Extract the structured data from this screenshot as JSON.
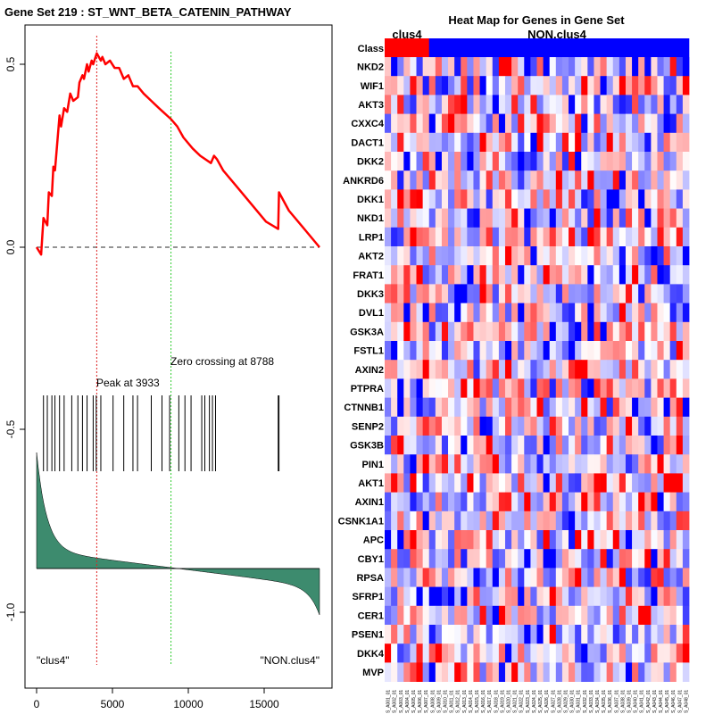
{
  "chart_data": [
    {
      "type": "line",
      "title": "Gene Set  219 : ST_WNT_BETA_CATENIN_PATHWAY",
      "xlim": [
        0,
        18500
      ],
      "ylim": [
        -1.15,
        0.6
      ],
      "x_ticks": [
        "0",
        "5000",
        "10000",
        "15000"
      ],
      "y_ticks": [
        "0.5",
        "0.0",
        "-0.5",
        "-1.0"
      ],
      "peak_label": "Peak at 3933",
      "peak_x": 3933,
      "zero_crossing_label": "Zero crossing at 8788",
      "zero_crossing_x": 8788,
      "left_class_label": "\"clus4\"",
      "right_class_label": "\"NON.clus4\"",
      "series": [
        {
          "name": "running enrichment score",
          "color": "#ff0000",
          "x": [
            0,
            300,
            450,
            700,
            800,
            1000,
            1100,
            1200,
            1500,
            1600,
            1800,
            2000,
            2200,
            2400,
            2700,
            2800,
            3000,
            3100,
            3300,
            3400,
            3600,
            3700,
            3933,
            4200,
            4300,
            4500,
            4800,
            5100,
            5400,
            5700,
            6000,
            6300,
            6600,
            7000,
            7500,
            8000,
            8788,
            9200,
            9600,
            10200,
            10700,
            11400,
            11600,
            11800,
            12200,
            13000,
            14000,
            15000,
            15800,
            15850,
            16500,
            17500,
            18500
          ],
          "y": [
            0.0,
            -0.02,
            0.08,
            0.06,
            0.15,
            0.14,
            0.22,
            0.21,
            0.36,
            0.33,
            0.38,
            0.37,
            0.42,
            0.4,
            0.41,
            0.45,
            0.47,
            0.46,
            0.5,
            0.48,
            0.51,
            0.5,
            0.53,
            0.51,
            0.52,
            0.5,
            0.51,
            0.49,
            0.49,
            0.46,
            0.47,
            0.44,
            0.44,
            0.42,
            0.4,
            0.38,
            0.35,
            0.33,
            0.3,
            0.27,
            0.25,
            0.23,
            0.25,
            0.24,
            0.21,
            0.17,
            0.12,
            0.07,
            0.05,
            0.15,
            0.1,
            0.05,
            0.0
          ]
        }
      ],
      "hit_positions": [
        450,
        700,
        1000,
        1200,
        1500,
        1800,
        2300,
        2700,
        3000,
        3300,
        3700,
        3900,
        4200,
        5000,
        5700,
        6300,
        6600,
        7500,
        8200,
        8700,
        9300,
        9700,
        10100,
        10800,
        11000,
        11300,
        11500,
        11700,
        15800,
        15850
      ]
    },
    {
      "type": "heatmap",
      "title": "Heat Map for Genes in Gene Set",
      "class_label": "Class",
      "class_groups": [
        {
          "name": "clus4",
          "count": 7,
          "color": "#ff0000"
        },
        {
          "name": "NON.clus4",
          "count": 41,
          "color": "#0000ff"
        }
      ],
      "genes": [
        "NKD2",
        "WIF1",
        "AKT3",
        "CXXC4",
        "DACT1",
        "DKK2",
        "ANKRD6",
        "DKK1",
        "NKD1",
        "LRP1",
        "AKT2",
        "FRAT1",
        "DKK3",
        "DVL1",
        "GSK3A",
        "FSTL1",
        "AXIN2",
        "PTPRA",
        "CTNNB1",
        "SENP2",
        "GSK3B",
        "PIN1",
        "AKT1",
        "AXIN1",
        "CSNK1A1",
        "APC",
        "CBY1",
        "RPSA",
        "SFRP1",
        "CER1",
        "PSEN1",
        "DKK4",
        "MVP"
      ],
      "sample_labels": [
        "S_A001_01",
        "S_A002_01",
        "S_A003_01",
        "S_A004_01",
        "S_A005_01",
        "S_A006_01",
        "S_A007_01",
        "S_A008_01",
        "S_A009_01",
        "S_A010_01",
        "S_A011_01",
        "S_A012_01",
        "S_A013_01",
        "S_A014_01",
        "S_A015_01",
        "S_A016_01",
        "S_A017_01",
        "S_A018_01",
        "S_A019_01",
        "S_A020_01",
        "S_A021_01",
        "S_A022_01",
        "S_A023_01",
        "S_A024_01",
        "S_A025_01",
        "S_A026_01",
        "S_A027_01",
        "S_A028_01",
        "S_A029_01",
        "S_A030_01",
        "S_A031_01",
        "S_A032_01",
        "S_A033_01",
        "S_A034_01",
        "S_A035_01",
        "S_A036_01",
        "S_A037_01",
        "S_A038_01",
        "S_A039_01",
        "S_A040_01",
        "S_A041_01",
        "S_A042_01",
        "S_A043_01",
        "S_A044_01",
        "S_A045_01",
        "S_A046_01",
        "S_A047_01",
        "S_A048_01"
      ],
      "value_range": [
        -2,
        2
      ],
      "color_low": "#0000ff",
      "color_mid": "#ffffff",
      "color_high": "#ff0000"
    }
  ]
}
